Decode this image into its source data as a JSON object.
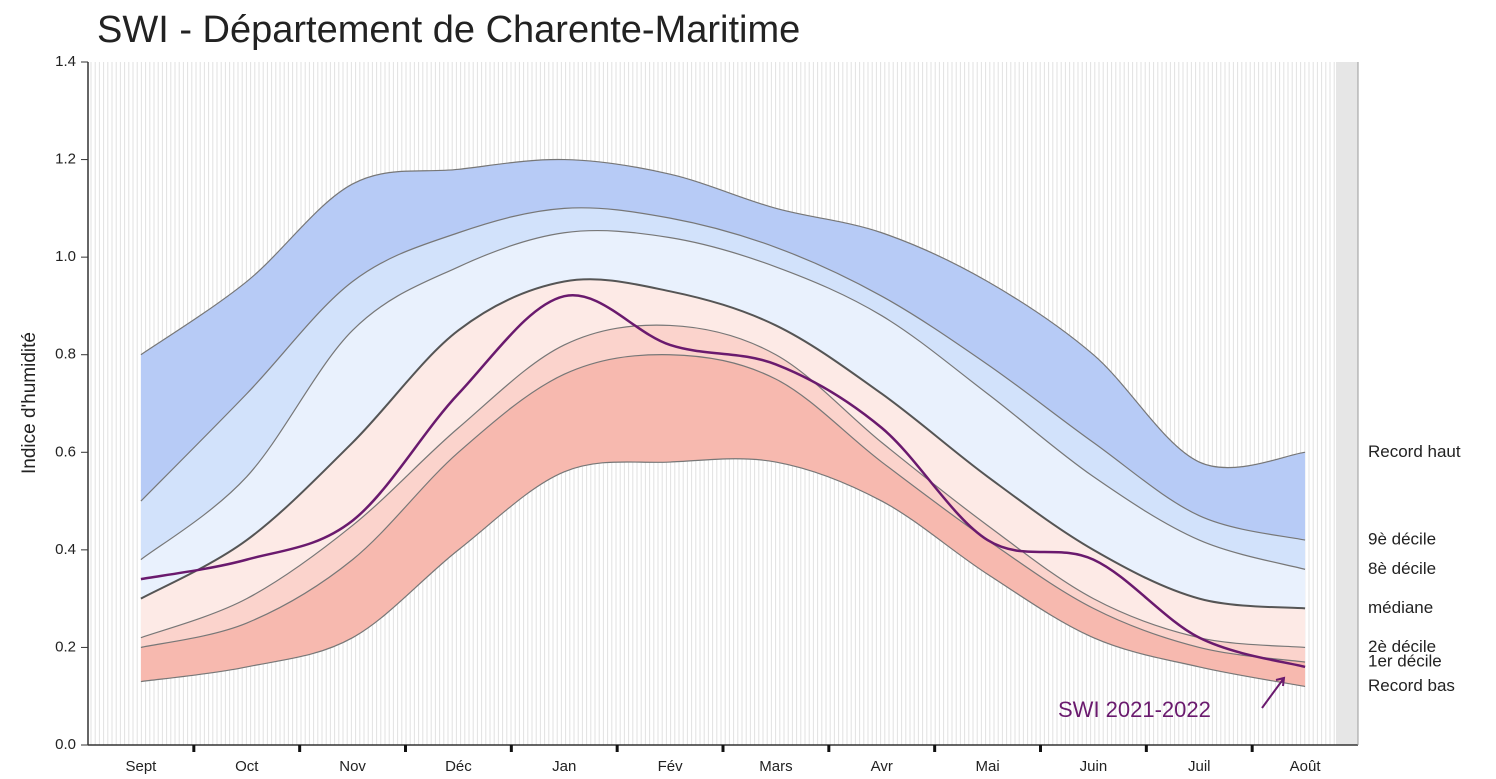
{
  "chart_data": {
    "type": "band",
    "title": "SWI - Département de Charente-Maritime",
    "y_label": "Indice d'humidité",
    "categories": [
      "Sept",
      "Oct",
      "Nov",
      "Déc",
      "Jan",
      "Fév",
      "Mars",
      "Avr",
      "Mai",
      "Juin",
      "Juil",
      "Août"
    ],
    "ylim": [
      0,
      1.4
    ],
    "yticks": [
      {
        "value": 0,
        "label": "0.0"
      },
      0.2,
      0.4,
      0.6,
      0.8,
      {
        "value": 1,
        "label": "1.0"
      },
      1.2,
      1.4
    ],
    "series": [
      {
        "name": "Record haut",
        "color": "#b7cbf6",
        "values": [
          0.8,
          0.95,
          1.15,
          1.18,
          1.2,
          1.17,
          1.1,
          1.05,
          0.95,
          0.8,
          0.58,
          0.6
        ]
      },
      {
        "name": "9è décile",
        "color": "#d2e2fb",
        "values": [
          0.5,
          0.72,
          0.95,
          1.05,
          1.1,
          1.08,
          1.02,
          0.92,
          0.78,
          0.62,
          0.47,
          0.42
        ]
      },
      {
        "name": "8è décile",
        "color": "#e9f1fd",
        "values": [
          0.38,
          0.55,
          0.85,
          0.98,
          1.05,
          1.04,
          0.98,
          0.88,
          0.72,
          0.55,
          0.42,
          0.36
        ]
      },
      {
        "name": "médiane",
        "color": "#fdeae6",
        "values": [
          0.3,
          0.42,
          0.62,
          0.85,
          0.95,
          0.93,
          0.86,
          0.72,
          0.55,
          0.4,
          0.3,
          0.28
        ]
      },
      {
        "name": "2è décile",
        "color": "#fbd3cc",
        "values": [
          0.22,
          0.3,
          0.45,
          0.65,
          0.82,
          0.86,
          0.8,
          0.62,
          0.45,
          0.3,
          0.22,
          0.2
        ]
      },
      {
        "name": "1er décile",
        "color": "#f7b9af",
        "values": [
          0.2,
          0.25,
          0.38,
          0.6,
          0.76,
          0.8,
          0.75,
          0.58,
          0.42,
          0.28,
          0.2,
          0.17
        ]
      },
      {
        "name": "Record bas",
        "values": [
          0.13,
          0.16,
          0.22,
          0.4,
          0.56,
          0.58,
          0.58,
          0.5,
          0.35,
          0.22,
          0.16,
          0.12
        ]
      }
    ],
    "current": {
      "name": "SWI 2021-2022",
      "color": "#6a1a6e",
      "values": [
        0.34,
        0.38,
        0.46,
        0.72,
        0.92,
        0.82,
        0.78,
        0.65,
        0.42,
        0.38,
        0.22,
        0.16
      ]
    }
  }
}
